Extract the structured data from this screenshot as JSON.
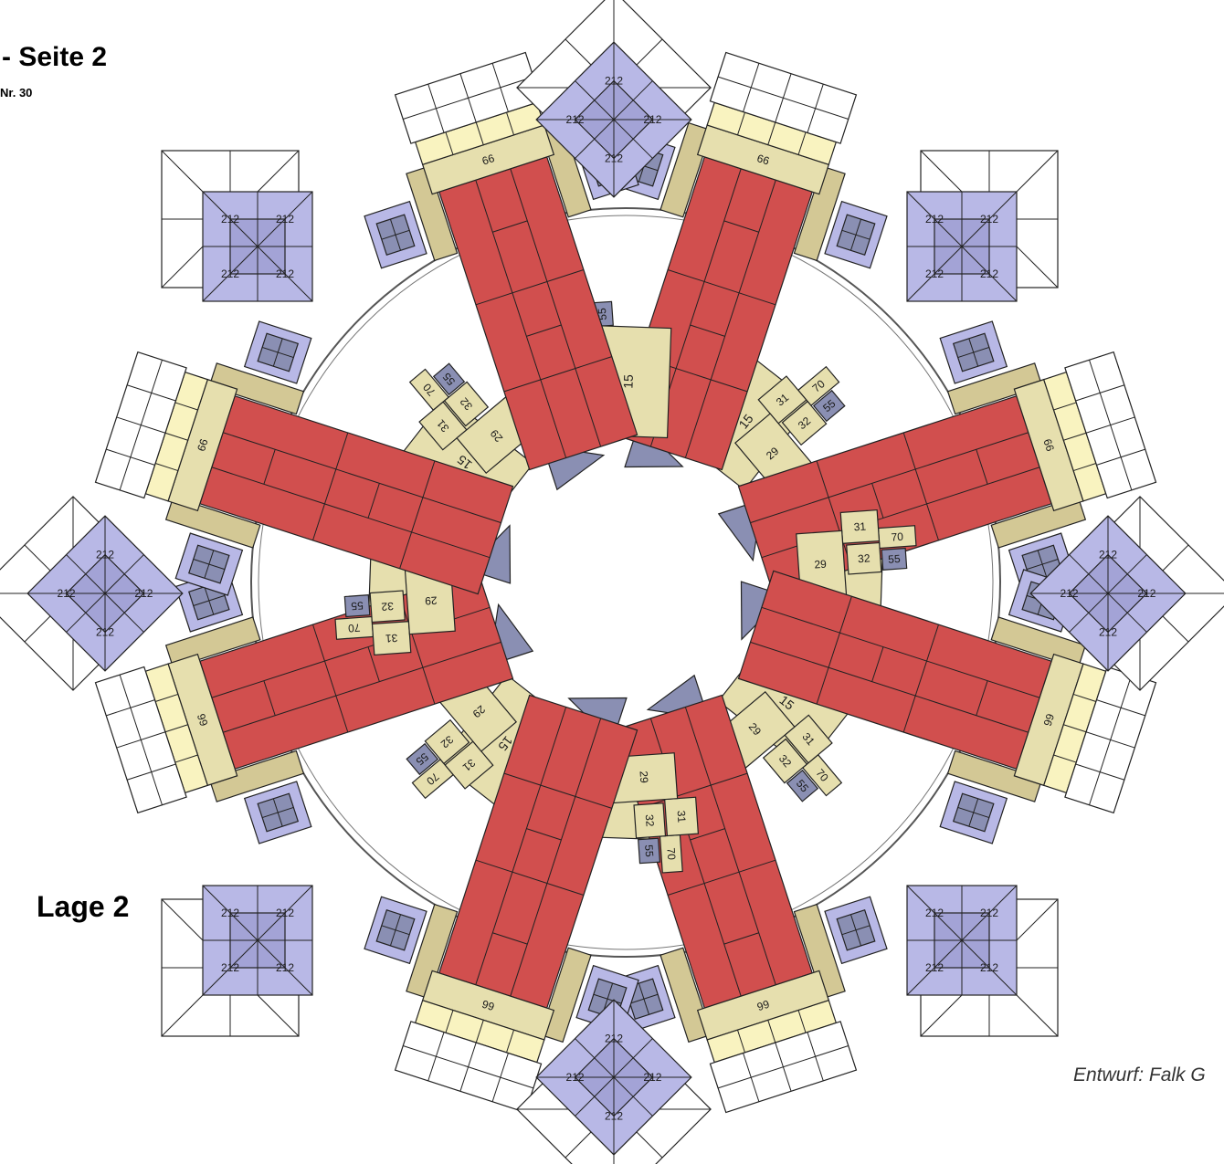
{
  "title": "- Seite 2",
  "subtitle": "Nr. 30",
  "layer_label": "Lage 2",
  "credit": "Entwurf: Falk G",
  "colors": {
    "brick_red": "#d14f4e",
    "cream": "#e6dfae",
    "light_yellow": "#f9f3c0",
    "olive": "#d3c895",
    "lavender": "#b8b8e6",
    "slate": "#8a8fb3",
    "white_plate": "#ffffff",
    "outline": "#222222"
  },
  "element_labels": {
    "diamond_plate": "212",
    "long_plate": "66",
    "big_plate": "15",
    "plate_a": "29",
    "plate_b": "31",
    "plate_c": "32",
    "plate_d": "55",
    "plate_e": "70"
  }
}
